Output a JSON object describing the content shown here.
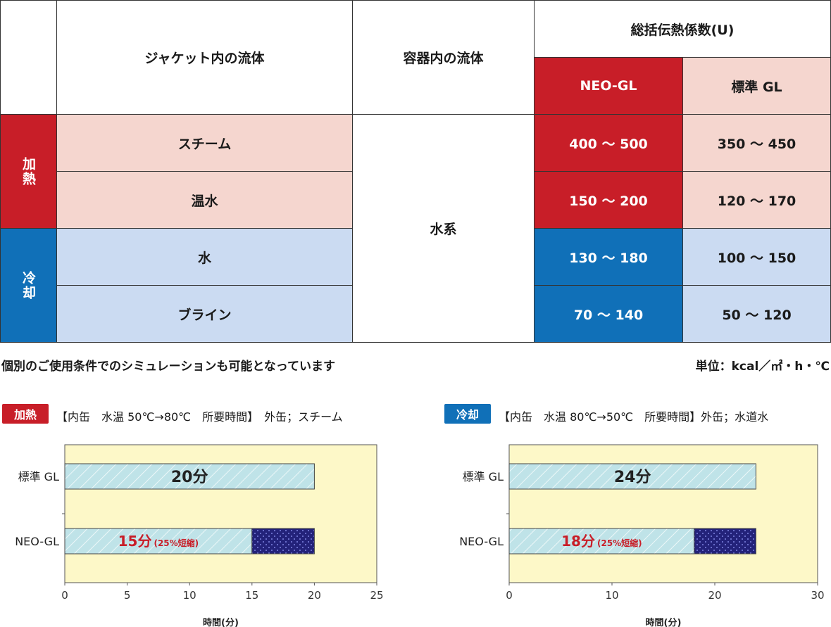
{
  "table": {
    "header": {
      "jacket_fluid": "ジャケット内の流体",
      "vessel_fluid": "容器内の流体",
      "overall_coef": "総括伝熱係数(U)",
      "neo_gl": "NEO-GL",
      "std_gl": "標準 GL"
    },
    "groups": {
      "heating": "加熱",
      "cooling": "冷却"
    },
    "vessel_value": "水系",
    "rows": [
      {
        "fluid": "スチーム",
        "neo": "400 ～ 500",
        "std": "350 ～ 450"
      },
      {
        "fluid": "温水",
        "neo": "150 ～ 200",
        "std": "120 ～ 170"
      },
      {
        "fluid": "水",
        "neo": "130 ～ 180",
        "std": "100 ～ 150"
      },
      {
        "fluid": "ブライン",
        "neo": "70 ～ 140",
        "std": "50 ～ 120"
      }
    ]
  },
  "notes": {
    "simulation": "個別のご使用条件でのシミュレーションも可能となっています",
    "unit": "単位：kcal／㎡・h・℃"
  },
  "colors": {
    "red": "#c81e28",
    "blue": "#1070b8",
    "pink": "#f5d6cf",
    "light_blue": "#cbdbf2",
    "chart_bg": "#fdf8c8",
    "bar_fill": "#bfe3e8",
    "dotted_fill": "#23227a"
  },
  "chart_data": [
    {
      "type": "bar",
      "badge": "加熱",
      "caption": "【内缶　水温 50℃→80℃　所要時間】　外缶；スチーム",
      "categories": [
        "標準 GL",
        "NEO-GL"
      ],
      "values": [
        20,
        15
      ],
      "segment_total": 20,
      "data_labels": [
        "20分",
        "15分"
      ],
      "reduction_note": "(25%短縮)",
      "xlim": [
        0,
        25
      ],
      "xticks": [
        "0",
        "5",
        "10",
        "15",
        "20",
        "25"
      ],
      "xlabel": "時間(分)"
    },
    {
      "type": "bar",
      "badge": "冷却",
      "caption": "【内缶　水温 80℃→50℃　所要時間】外缶；水道水",
      "categories": [
        "標準 GL",
        "NEO-GL"
      ],
      "values": [
        24,
        18
      ],
      "segment_total": 24,
      "data_labels": [
        "24分",
        "18分"
      ],
      "reduction_note": "(25%短縮)",
      "xlim": [
        0,
        30
      ],
      "xticks": [
        "0",
        "10",
        "20",
        "30"
      ],
      "xlabel": "時間(分)"
    }
  ]
}
